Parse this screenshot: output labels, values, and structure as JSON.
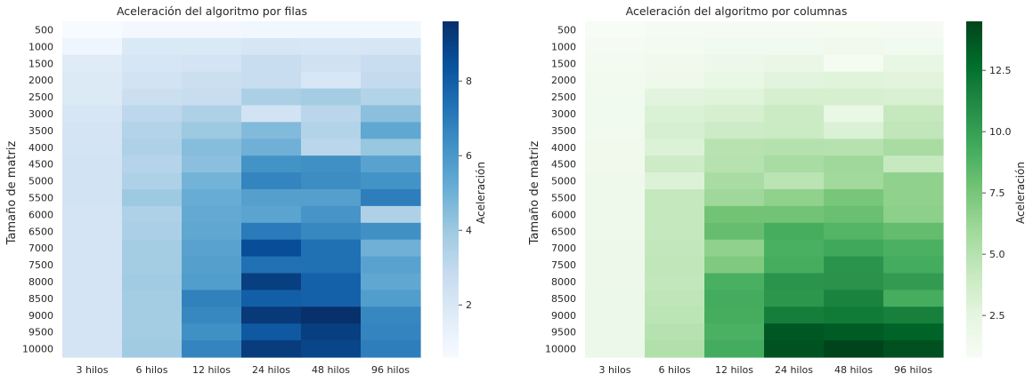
{
  "chart_data": [
    {
      "type": "heatmap",
      "title": "Aceleración del algoritmo por filas",
      "xlabel": "",
      "ylabel": "Tamaño de matriz",
      "x": [
        "3 hilos",
        "6 hilos",
        "12 hilos",
        "24 hilos",
        "48 hilos",
        "96 hilos"
      ],
      "y": [
        "500",
        "1000",
        "1500",
        "2000",
        "2500",
        "3000",
        "3500",
        "4000",
        "4500",
        "5000",
        "5500",
        "6000",
        "6500",
        "7000",
        "7500",
        "8000",
        "8500",
        "9000",
        "9500",
        "10000"
      ],
      "values": [
        [
          0.6,
          0.8,
          0.8,
          0.9,
          0.9,
          0.9
        ],
        [
          1.0,
          1.9,
          1.9,
          2.1,
          2.0,
          2.1
        ],
        [
          1.7,
          2.1,
          2.2,
          2.7,
          2.4,
          2.7
        ],
        [
          1.8,
          2.3,
          2.6,
          2.7,
          2.0,
          2.9
        ],
        [
          1.8,
          2.6,
          2.7,
          3.6,
          3.8,
          3.4
        ],
        [
          2.1,
          3.1,
          3.5,
          2.3,
          3.2,
          4.4
        ],
        [
          2.2,
          3.4,
          4.0,
          4.6,
          3.4,
          5.4
        ],
        [
          2.2,
          3.5,
          4.5,
          5.0,
          3.2,
          4.1
        ],
        [
          2.3,
          3.3,
          4.4,
          6.2,
          6.3,
          5.6
        ],
        [
          2.3,
          3.5,
          4.9,
          6.7,
          6.4,
          6.2
        ],
        [
          2.3,
          4.0,
          5.2,
          5.7,
          5.7,
          6.9
        ],
        [
          2.2,
          3.5,
          5.3,
          5.5,
          6.1,
          3.5
        ],
        [
          2.2,
          3.6,
          5.4,
          7.0,
          6.6,
          6.3
        ],
        [
          2.2,
          3.8,
          5.6,
          8.6,
          7.4,
          5.0
        ],
        [
          2.2,
          3.8,
          5.7,
          7.4,
          7.4,
          5.6
        ],
        [
          2.2,
          3.9,
          5.8,
          9.1,
          7.9,
          5.4
        ],
        [
          2.2,
          3.8,
          6.8,
          8.0,
          7.9,
          5.8
        ],
        [
          2.2,
          3.8,
          6.6,
          9.3,
          9.6,
          6.6
        ],
        [
          2.2,
          3.8,
          6.3,
          8.2,
          9.1,
          6.7
        ],
        [
          2.2,
          3.9,
          6.7,
          9.2,
          8.9,
          6.9
        ]
      ],
      "colorbar": {
        "label": "Aceleración",
        "min": 0.6,
        "max": 9.6,
        "ticks": [
          2,
          4,
          6,
          8
        ]
      },
      "colormap": "Blues",
      "grid": false
    },
    {
      "type": "heatmap",
      "title": "Aceleración del algoritmo por columnas",
      "xlabel": "",
      "ylabel": "Tamaño de matriz",
      "x": [
        "3 hilos",
        "6 hilos",
        "12 hilos",
        "24 hilos",
        "48 hilos",
        "96 hilos"
      ],
      "y": [
        "500",
        "1000",
        "1500",
        "2000",
        "2500",
        "3000",
        "3500",
        "4000",
        "4500",
        "5000",
        "5500",
        "6000",
        "6500",
        "7000",
        "7500",
        "8000",
        "8500",
        "9000",
        "9500",
        "10000"
      ],
      "values": [
        [
          0.8,
          1.0,
          1.0,
          1.0,
          1.1,
          1.0
        ],
        [
          1.0,
          1.2,
          1.4,
          1.4,
          1.5,
          1.4
        ],
        [
          1.2,
          1.5,
          1.7,
          2.0,
          1.1,
          2.2
        ],
        [
          1.3,
          1.6,
          2.1,
          2.6,
          2.8,
          2.7
        ],
        [
          1.4,
          2.6,
          2.8,
          3.4,
          3.4,
          3.2
        ],
        [
          1.4,
          3.1,
          3.4,
          4.0,
          2.1,
          4.3
        ],
        [
          1.4,
          3.3,
          3.9,
          4.0,
          3.1,
          4.5
        ],
        [
          1.5,
          3.0,
          4.9,
          5.1,
          5.0,
          5.6
        ],
        [
          1.5,
          3.9,
          5.0,
          5.6,
          6.0,
          4.2
        ],
        [
          1.6,
          3.0,
          5.6,
          4.8,
          5.9,
          6.6
        ],
        [
          1.6,
          4.3,
          6.0,
          6.6,
          7.5,
          6.6
        ],
        [
          1.6,
          4.3,
          7.7,
          7.7,
          8.0,
          6.7
        ],
        [
          1.6,
          4.3,
          8.1,
          9.2,
          8.7,
          8.2
        ],
        [
          1.7,
          4.4,
          6.6,
          9.1,
          9.5,
          9.0
        ],
        [
          1.7,
          4.5,
          7.2,
          9.2,
          10.6,
          9.3
        ],
        [
          1.7,
          4.4,
          9.1,
          10.6,
          10.7,
          10.2
        ],
        [
          1.8,
          4.6,
          9.3,
          10.5,
          11.5,
          9.2
        ],
        [
          1.8,
          4.7,
          9.2,
          11.8,
          12.0,
          11.7
        ],
        [
          1.8,
          5.0,
          9.0,
          13.7,
          13.5,
          13.2
        ],
        [
          1.8,
          5.2,
          9.3,
          13.9,
          14.5,
          14.0
        ]
      ],
      "colorbar": {
        "label": "Aceleración",
        "min": 0.8,
        "max": 14.5,
        "ticks": [
          2.5,
          5.0,
          7.5,
          10.0,
          12.5
        ]
      },
      "colormap": "Greens",
      "grid": false
    }
  ],
  "colors": {
    "blues": [
      "#f7fbff",
      "#deebf7",
      "#c6dbef",
      "#9ecae1",
      "#6baed6",
      "#4292c6",
      "#2171b5",
      "#08519c",
      "#08306b"
    ],
    "greens": [
      "#f7fcf5",
      "#e5f5e0",
      "#c7e9c0",
      "#a1d99b",
      "#74c476",
      "#41ab5d",
      "#238b45",
      "#006d2c",
      "#00441b"
    ]
  }
}
